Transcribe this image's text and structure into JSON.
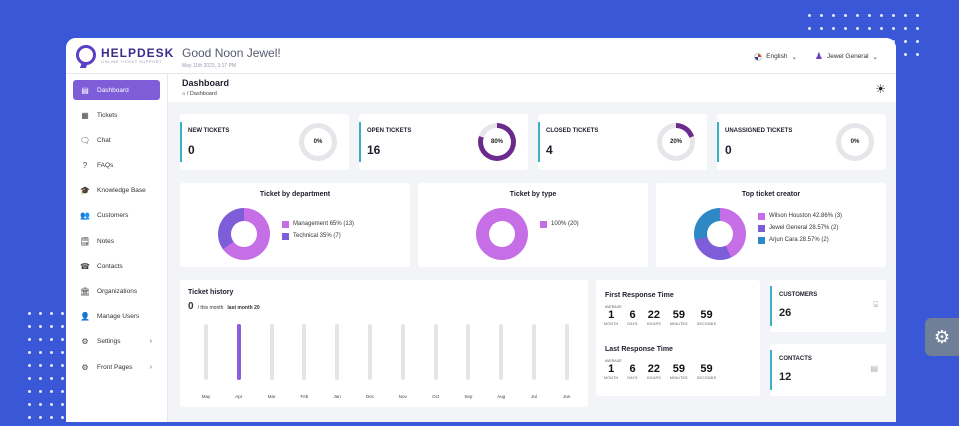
{
  "brand": {
    "name": "HELPDESK",
    "tagline": "ONLINE TICKET SUPPORT"
  },
  "header": {
    "greeting": "Good Noon Jewel!",
    "datetime": "May 11th 2023, 3:17 PM",
    "language": "English",
    "user": "Jewel General"
  },
  "sidebar": {
    "items": [
      {
        "label": "Dashboard",
        "icon": "dashboard-icon",
        "glyph": "▤",
        "active": true
      },
      {
        "label": "Tickets",
        "icon": "ticket-icon",
        "glyph": "▦"
      },
      {
        "label": "Chat",
        "icon": "chat-icon",
        "glyph": "🗨"
      },
      {
        "label": "FAQs",
        "icon": "faq-icon",
        "glyph": "?"
      },
      {
        "label": "Knowledge Base",
        "icon": "knowledge-base-icon",
        "glyph": "🎓"
      },
      {
        "label": "Customers",
        "icon": "customers-icon",
        "glyph": "👥"
      },
      {
        "label": "Notes",
        "icon": "notes-icon",
        "glyph": "🗒"
      },
      {
        "label": "Contacts",
        "icon": "contacts-icon",
        "glyph": "☎"
      },
      {
        "label": "Organizations",
        "icon": "organizations-icon",
        "glyph": "🏛"
      },
      {
        "label": "Manage Users",
        "icon": "manage-users-icon",
        "glyph": "👤"
      },
      {
        "label": "Settings",
        "icon": "settings-icon",
        "glyph": "⚙",
        "chevron": "›"
      },
      {
        "label": "Front Pages",
        "icon": "front-pages-icon",
        "glyph": "⚙",
        "chevron": "›"
      }
    ]
  },
  "page": {
    "title": "Dashboard",
    "breadcrumb": "/  Dashboard"
  },
  "stats": [
    {
      "label": "NEW TICKETS",
      "value": "0",
      "percent": "0%",
      "pct": 0
    },
    {
      "label": "OPEN TICKETS",
      "value": "16",
      "percent": "80%",
      "pct": 80
    },
    {
      "label": "CLOSED TICKETS",
      "value": "4",
      "percent": "20%",
      "pct": 20
    },
    {
      "label": "UNASSIGNED TICKETS",
      "value": "0",
      "percent": "0%",
      "pct": 0
    }
  ],
  "donuts": [
    {
      "title": "Ticket by department",
      "legend": [
        {
          "label": "Management 65% (13)",
          "value": 65,
          "color": "#c56ee6"
        },
        {
          "label": "Technical 35% (7)",
          "value": 35,
          "color": "#7e5ed8"
        }
      ]
    },
    {
      "title": "Ticket by type",
      "legend": [
        {
          "label": "100% (20)",
          "value": 100,
          "color": "#c56ee6"
        }
      ]
    },
    {
      "title": "Top ticket creator",
      "legend": [
        {
          "label": "Wilson Houston 42.86% (3)",
          "value": 42.86,
          "color": "#c56ee6"
        },
        {
          "label": "Jewel General 28.57% (2)",
          "value": 28.57,
          "color": "#7e5ed8"
        },
        {
          "label": "Arjun Cara 28.57% (2)",
          "value": 28.57,
          "color": "#2d88c4"
        }
      ]
    }
  ],
  "history": {
    "title": "Ticket history",
    "count": "0",
    "this_month": "/ this month",
    "last_month": "last month 20"
  },
  "chart_data": {
    "type": "bar",
    "categories": [
      "May",
      "Apr",
      "Mar",
      "Feb",
      "Jan",
      "Dec",
      "Nov",
      "Oct",
      "Sep",
      "Aug",
      "Jul",
      "Jun"
    ],
    "values": [
      0,
      20,
      0,
      0,
      0,
      0,
      0,
      0,
      0,
      0,
      0,
      0
    ],
    "title": "Ticket history"
  },
  "response": {
    "first": {
      "title": "First Response Time",
      "avg": "AVERAGE",
      "values": [
        {
          "n": "1",
          "u": "MONTH"
        },
        {
          "n": "6",
          "u": "DAYS"
        },
        {
          "n": "22",
          "u": "HOURS"
        },
        {
          "n": "59",
          "u": "MINUTES"
        },
        {
          "n": "59",
          "u": "SECONDS"
        }
      ]
    },
    "last": {
      "title": "Last Response Time",
      "avg": "AVERAGE",
      "values": [
        {
          "n": "1",
          "u": "MONTH"
        },
        {
          "n": "6",
          "u": "DAYS"
        },
        {
          "n": "22",
          "u": "HOURS"
        },
        {
          "n": "59",
          "u": "MINUTES"
        },
        {
          "n": "59",
          "u": "SECONDS"
        }
      ]
    }
  },
  "customers": {
    "label": "CUSTOMERS",
    "value": "26"
  },
  "contacts": {
    "label": "CONTACTS",
    "value": "12"
  },
  "colors": {
    "accent": "#7e5ed8",
    "ring": "#6b2a8c",
    "teal": "#3ab0c8",
    "background": "#3a57d8"
  }
}
